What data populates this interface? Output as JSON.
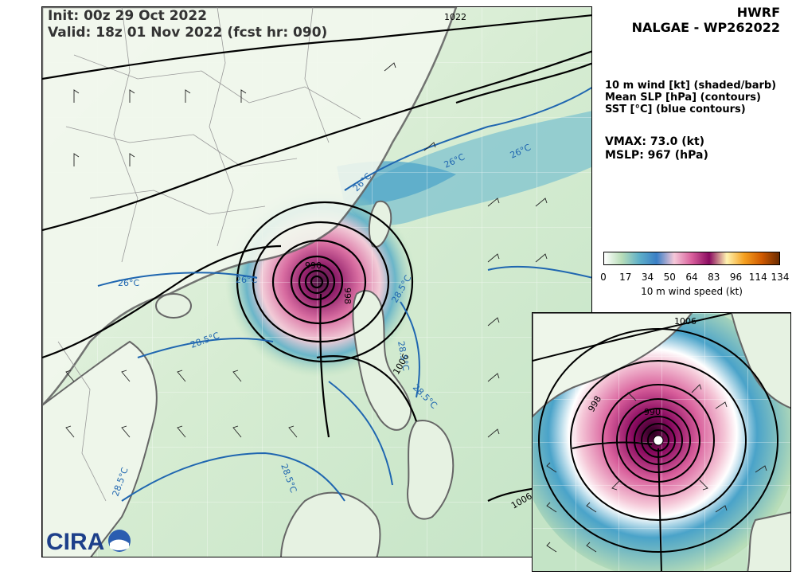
{
  "header": {
    "init_line": "Init:   00z 29 Oct 2022",
    "valid_line": "Valid: 18z 01 Nov 2022 (fcst hr: 090)"
  },
  "title": {
    "model": "HWRF",
    "storm": "NALGAE - WP262022"
  },
  "fields": {
    "wind": "10 m wind [kt] (shaded/barb)",
    "slp": "Mean SLP [hPa] (contours)",
    "sst": "SST [°C] (blue contours)"
  },
  "stats": {
    "vmax": "VMAX:  73.0 (kt)",
    "mslp": "MSLP:  967 (hPa)"
  },
  "colorbar": {
    "ticks": [
      "0",
      "17",
      "34",
      "50",
      "64",
      "83",
      "96",
      "114",
      "134"
    ],
    "tick_values": [
      0,
      17,
      34,
      50,
      64,
      83,
      96,
      114,
      134
    ],
    "max": 134,
    "label": "10 m wind speed (kt)",
    "colors": [
      "#ffffff",
      "#b8ddb8",
      "#5fb0c8",
      "#3a7fc6",
      "#f5c8d8",
      "#d9609c",
      "#8a0a60",
      "#fff3b0",
      "#f5a020",
      "#d05a00",
      "#6a2a00"
    ]
  },
  "contour_labels": {
    "p1022": "1022",
    "p1006a": "1006",
    "p1006b": "1006",
    "p998": "998",
    "p990": "990",
    "p1006_inset": "1006",
    "p998_inset": "998",
    "p990_inset": "990",
    "sst1": "26°C",
    "sst2": "26°C",
    "sst3": "26°C",
    "sst4": "26°C",
    "sst5": "26°C",
    "sst6": "28.5°C",
    "sst7": "28.5°C",
    "sst8": "28.5°C",
    "sst9": "28.5°C",
    "sst10": "28.5°C",
    "sst11": "28.5°C"
  },
  "logo": {
    "text": "CIRA"
  }
}
